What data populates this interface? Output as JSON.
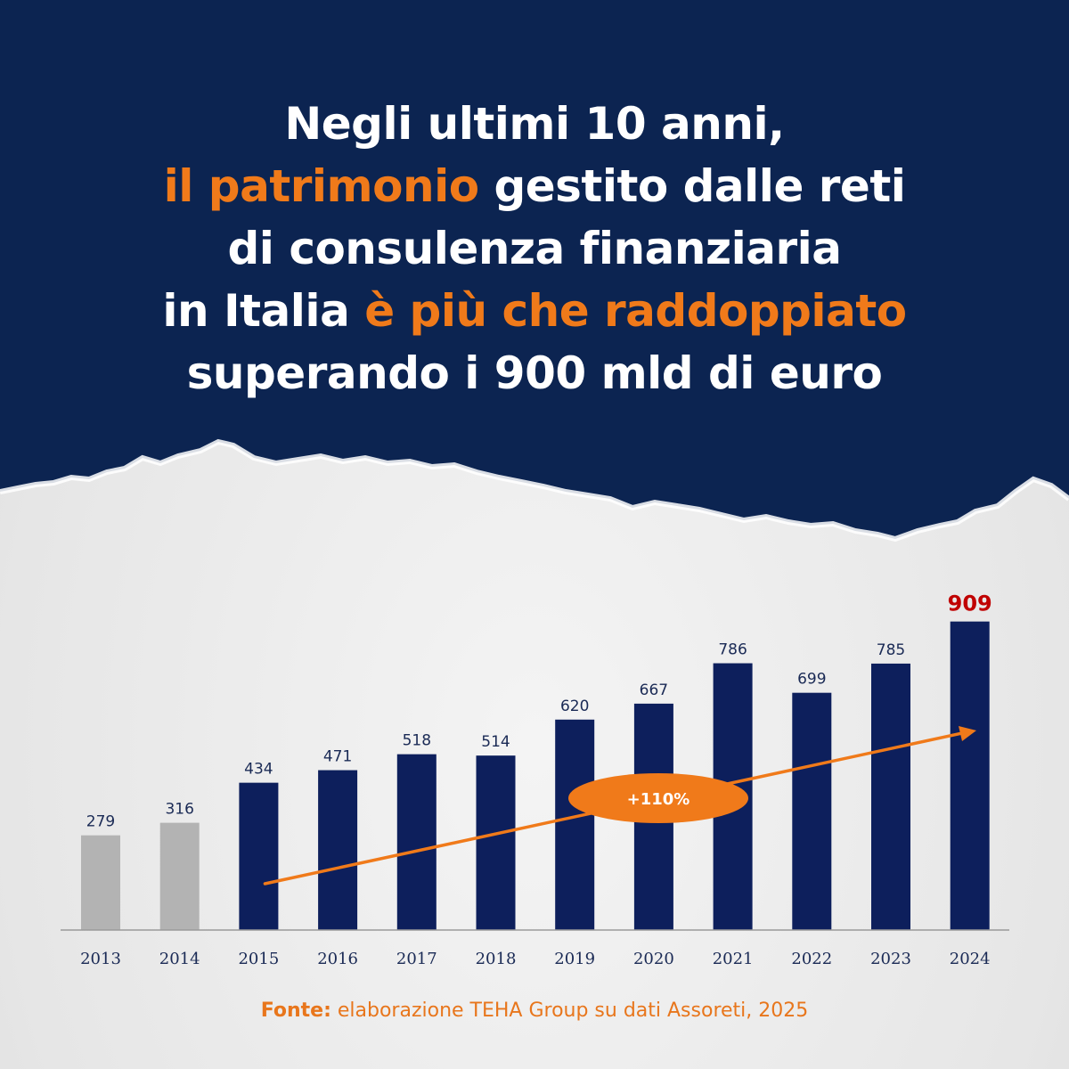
{
  "headline": {
    "line1": "Negli ultimi 10 anni,",
    "line2_highlight": "il patrimonio",
    "line2_rest": " gestito dalle reti",
    "line3": "di consulenza finanziaria",
    "line4_start": "in Italia ",
    "line4_highlight": "è più che raddoppiato",
    "line5": "superando i 900 mld di euro"
  },
  "colors": {
    "navy": "#0d1f5c",
    "header_navy": "#0c2451",
    "gray_bar": "#b3b3b3",
    "orange": "#f07a1a",
    "highlight_red": "#c00000"
  },
  "chart_data": {
    "type": "bar",
    "categories": [
      "2013",
      "2014",
      "2015",
      "2016",
      "2017",
      "2018",
      "2019",
      "2020",
      "2021",
      "2022",
      "2023",
      "2024"
    ],
    "values": [
      279,
      316,
      434,
      471,
      518,
      514,
      620,
      667,
      786,
      699,
      785,
      909
    ],
    "bar_colors": [
      "gray",
      "gray",
      "navy",
      "navy",
      "navy",
      "navy",
      "navy",
      "navy",
      "navy",
      "navy",
      "navy",
      "navy"
    ],
    "highlighted_value_index": 11,
    "growth_annotation": "+110%",
    "title": "",
    "xlabel": "",
    "ylabel": "",
    "ylim": [
      0,
      950
    ],
    "grid": false,
    "legend": "none"
  },
  "source": {
    "label": "Fonte:",
    "text": " elaborazione TEHA Group su dati Assoreti, 2025"
  }
}
